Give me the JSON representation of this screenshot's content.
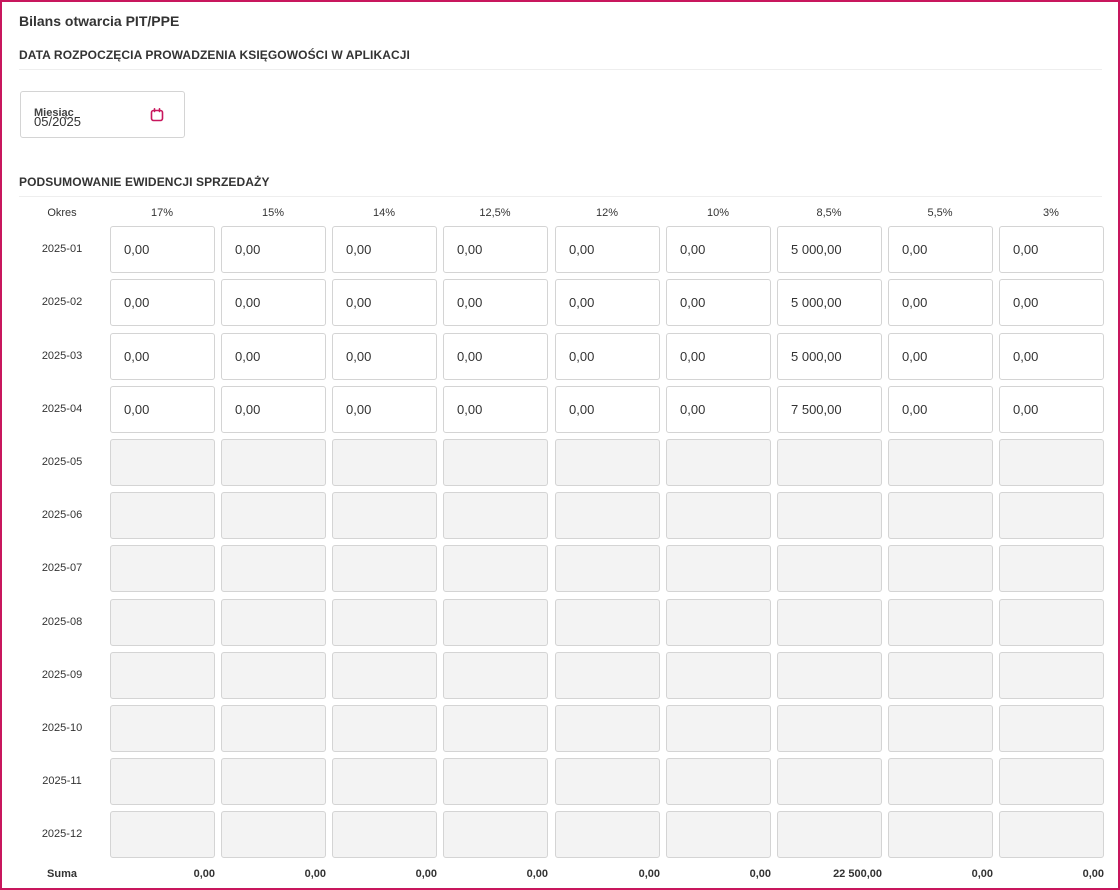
{
  "page": {
    "title": "Bilans otwarcia PIT/PPE"
  },
  "start_section": {
    "title": "DATA ROZPOCZĘCIA PROWADZENIA KSIĘGOWOŚCI W APLIKACJI",
    "month_label": "Miesiąc",
    "month_value": "05/2025",
    "calendar_icon": "calendar-icon",
    "accent_color": "#c8175d"
  },
  "sales_section": {
    "title": "PODSUMOWANIE EWIDENCJI SPRZEDAŻY",
    "period_header": "Okres",
    "columns": [
      "17%",
      "15%",
      "14%",
      "12,5%",
      "12%",
      "10%",
      "8,5%",
      "5,5%",
      "3%"
    ],
    "rows": [
      {
        "period": "2025-01",
        "editable": true,
        "values": [
          "0,00",
          "0,00",
          "0,00",
          "0,00",
          "0,00",
          "0,00",
          "5 000,00",
          "0,00",
          "0,00"
        ]
      },
      {
        "period": "2025-02",
        "editable": true,
        "values": [
          "0,00",
          "0,00",
          "0,00",
          "0,00",
          "0,00",
          "0,00",
          "5 000,00",
          "0,00",
          "0,00"
        ]
      },
      {
        "period": "2025-03",
        "editable": true,
        "values": [
          "0,00",
          "0,00",
          "0,00",
          "0,00",
          "0,00",
          "0,00",
          "5 000,00",
          "0,00",
          "0,00"
        ]
      },
      {
        "period": "2025-04",
        "editable": true,
        "values": [
          "0,00",
          "0,00",
          "0,00",
          "0,00",
          "0,00",
          "0,00",
          "7 500,00",
          "0,00",
          "0,00"
        ]
      },
      {
        "period": "2025-05",
        "editable": false,
        "values": [
          "",
          "",
          "",
          "",
          "",
          "",
          "",
          "",
          ""
        ]
      },
      {
        "period": "2025-06",
        "editable": false,
        "values": [
          "",
          "",
          "",
          "",
          "",
          "",
          "",
          "",
          ""
        ]
      },
      {
        "period": "2025-07",
        "editable": false,
        "values": [
          "",
          "",
          "",
          "",
          "",
          "",
          "",
          "",
          ""
        ]
      },
      {
        "period": "2025-08",
        "editable": false,
        "values": [
          "",
          "",
          "",
          "",
          "",
          "",
          "",
          "",
          ""
        ]
      },
      {
        "period": "2025-09",
        "editable": false,
        "values": [
          "",
          "",
          "",
          "",
          "",
          "",
          "",
          "",
          ""
        ]
      },
      {
        "period": "2025-10",
        "editable": false,
        "values": [
          "",
          "",
          "",
          "",
          "",
          "",
          "",
          "",
          ""
        ]
      },
      {
        "period": "2025-11",
        "editable": false,
        "values": [
          "",
          "",
          "",
          "",
          "",
          "",
          "",
          "",
          ""
        ]
      },
      {
        "period": "2025-12",
        "editable": false,
        "values": [
          "",
          "",
          "",
          "",
          "",
          "",
          "",
          "",
          ""
        ]
      }
    ],
    "sum_label": "Suma",
    "sums": [
      "0,00",
      "0,00",
      "0,00",
      "0,00",
      "0,00",
      "0,00",
      "22 500,00",
      "0,00",
      "0,00"
    ]
  }
}
